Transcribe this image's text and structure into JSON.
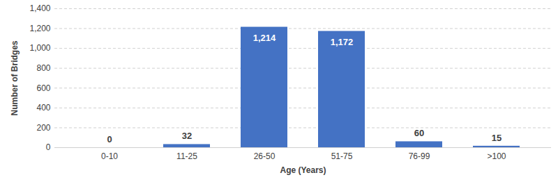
{
  "chart_data": {
    "type": "bar",
    "x_label": "Age (Years)",
    "y_label": "Number of Bridges",
    "categories": [
      "0-10",
      "11-25",
      "26-50",
      "51-75",
      "76-99",
      ">100"
    ],
    "values": [
      0,
      32,
      1214,
      1172,
      60,
      15
    ],
    "value_labels": [
      "0",
      "32",
      "1,214",
      "1,172",
      "60",
      "15"
    ],
    "color": "#4472c4",
    "ylim": [
      0,
      1400
    ],
    "yticks": [
      0,
      200,
      400,
      600,
      800,
      {
        "value": 1000,
        "label": "1,000"
      },
      {
        "value": 1200,
        "label": "1,200"
      },
      {
        "value": 1400,
        "label": "1,400"
      }
    ],
    "grid": true,
    "data_labels": true
  }
}
